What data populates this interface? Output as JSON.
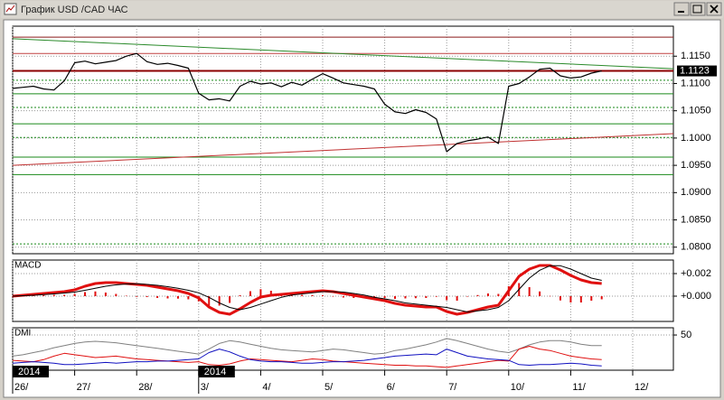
{
  "window": {
    "title": "График USD /CAD ЧАС"
  },
  "chart_data": [
    {
      "type": "line",
      "categories": [
        "26/",
        null,
        null,
        null,
        null,
        null,
        "27/",
        null,
        null,
        null,
        null,
        null,
        "28/",
        null,
        null,
        null,
        null,
        null,
        "3/",
        null,
        null,
        null,
        null,
        null,
        "4/",
        null,
        null,
        null,
        null,
        null,
        "5/",
        null,
        null,
        null,
        null,
        null,
        "6/",
        null,
        null,
        null,
        null,
        null,
        "7/",
        null,
        null,
        null,
        null,
        null,
        "10/",
        null,
        null,
        null,
        null,
        null,
        "11/",
        null,
        null,
        null,
        null,
        null,
        "12/"
      ],
      "series": [
        {
          "color": "#000000",
          "values": [
            1.1091,
            1.1093,
            1.1095,
            1.109,
            1.1088,
            1.1105,
            1.1138,
            1.1141,
            1.1136,
            1.1139,
            1.1142,
            1.115,
            1.1155,
            1.114,
            1.1135,
            1.1137,
            1.1133,
            1.1128,
            1.1082,
            1.107,
            1.1072,
            1.1068,
            1.1095,
            1.1104,
            1.1099,
            1.1101,
            1.1094,
            1.1102,
            1.1097,
            1.1108,
            1.1118,
            1.111,
            1.1101,
            1.1098,
            1.1095,
            1.109,
            1.1062,
            1.1048,
            1.1045,
            1.1052,
            1.1047,
            1.1035,
            1.0975,
            1.099,
            1.0995,
            1.0998,
            1.1002,
            1.099,
            1.1095,
            1.11,
            1.1112,
            1.1126,
            1.1128,
            1.1114,
            1.111,
            1.1112,
            1.1119,
            1.1123,
            null,
            null,
            null
          ]
        }
      ],
      "ylim": [
        1.0788,
        1.1205
      ],
      "yticks": [
        {
          "value": 1.115,
          "label": "1.1150"
        },
        {
          "value": 1.11,
          "label": "1.1100"
        },
        {
          "value": 1.105,
          "label": "1.1050"
        },
        {
          "value": 1.1,
          "label": "1.1000"
        },
        {
          "value": 1.095,
          "label": "1.0950"
        },
        {
          "value": 1.09,
          "label": "1.0900"
        },
        {
          "value": 1.085,
          "label": "1.0850"
        },
        {
          "value": 1.08,
          "label": "1.0800"
        }
      ],
      "grid": true,
      "last_price": 1.1123,
      "last_price_color": "#8b0000",
      "levels": [
        {
          "value": 1.1185,
          "color": "#8b1a1a",
          "dashed": false
        },
        {
          "value": 1.1155,
          "color": "#c04040",
          "dashed": false
        },
        {
          "value": 1.1106,
          "color": "#1a8a1a",
          "dashed": true
        },
        {
          "value": 1.1081,
          "color": "#1a8a1a",
          "dashed": false
        },
        {
          "value": 1.1056,
          "color": "#1a8a1a",
          "dashed": true
        },
        {
          "value": 1.1026,
          "color": "#1a8a1a",
          "dashed": false
        },
        {
          "value": 1.1001,
          "color": "#1a8a1a",
          "dashed": true
        },
        {
          "value": 1.0965,
          "color": "#1a8a1a",
          "dashed": false
        },
        {
          "value": 1.0933,
          "color": "#1a8a1a",
          "dashed": false
        },
        {
          "value": 1.0806,
          "color": "#1a8a1a",
          "dashed": true
        }
      ],
      "trend_lines": [
        {
          "color": "#2a8a2a",
          "values": [
            1.1182,
            1.1127
          ]
        },
        {
          "color": "#c03030",
          "values": [
            1.095,
            1.1008
          ]
        }
      ],
      "annotations": [
        {
          "label": "2014",
          "category": 0
        },
        {
          "label": "2014",
          "category": 18
        }
      ]
    },
    {
      "type": "line",
      "title": "MACD",
      "series": [
        {
          "color": "#e01010",
          "width": 3,
          "values": [
            0,
            8e-05,
            0.00016,
            0.00024,
            0.00032,
            0.0004,
            0.00056,
            0.00088,
            0.00112,
            0.0012,
            0.0012,
            0.00112,
            0.00104,
            0.00096,
            0.0008,
            0.00064,
            0.00048,
            0.00024,
            -0.00016,
            -0.00096,
            -0.00144,
            -0.0016,
            -0.00112,
            -0.00056,
            -8e-05,
            8e-05,
            0.00016,
            0.00024,
            0.00032,
            0.0004,
            0.00048,
            0.0004,
            0.00024,
            8e-05,
            -8e-05,
            -0.00024,
            -0.0004,
            -0.00064,
            -0.0008,
            -0.00088,
            -0.00096,
            -0.00096,
            -0.00136,
            -0.0016,
            -0.00144,
            -0.0012,
            -0.00096,
            -0.0008,
            0.00048,
            0.00176,
            0.0024,
            0.00272,
            0.00272,
            0.00232,
            0.00184,
            0.00144,
            0.0012,
            0.00112
          ]
        },
        {
          "color": "#000000",
          "width": 1,
          "values": [
            0,
            4e-05,
            8e-05,
            0.00014,
            0.0002,
            0.00028,
            0.00036,
            0.00052,
            0.0007,
            0.00088,
            0.001,
            0.00108,
            0.0011,
            0.00104,
            0.00096,
            0.00084,
            0.0007,
            0.00052,
            0.0003,
            -0.0001,
            -0.0006,
            -0.001,
            -0.0012,
            -0.001,
            -0.0007,
            -0.0004,
            -0.0001,
            0.0001,
            0.0002,
            0.0003,
            0.0004,
            0.0004,
            0.00036,
            0.00024,
            0.0001,
            -0.0001,
            -0.00024,
            -0.0004,
            -0.0006,
            -0.0007,
            -0.0008,
            -0.0009,
            -0.001,
            -0.0012,
            -0.0014,
            -0.0013,
            -0.0012,
            -0.001,
            -0.0004,
            0.0006,
            0.0016,
            0.0023,
            0.0027,
            0.0027,
            0.0024,
            0.002,
            0.0016,
            0.0014
          ]
        }
      ],
      "histogram": {
        "color": "#e01010",
        "values": [
          0,
          4e-05,
          8e-05,
          0.0001,
          0.00012,
          0.00012,
          0.0002,
          0.00036,
          0.00042,
          0.00032,
          0.0002,
          4e-05,
          -6e-05,
          -8e-05,
          -0.00016,
          -0.0002,
          -0.00022,
          -0.00028,
          -0.00046,
          -0.00086,
          -0.00084,
          -0.0006,
          8e-05,
          0.00044,
          0.00062,
          0.00048,
          0.00026,
          0.00014,
          0.00012,
          0.0001,
          8e-05,
          0,
          -0.00012,
          -0.00016,
          -0.00018,
          -0.00014,
          -0.00016,
          -0.00024,
          -0.0002,
          -0.00018,
          -0.00016,
          -6e-05,
          -0.00036,
          -0.0004,
          -4e-05,
          0.0001,
          0.00024,
          0.0002,
          0.00088,
          0.00116,
          0.0008,
          0.00042,
          2e-05,
          -0.00038,
          -0.00056,
          -0.00056,
          -0.0004,
          -0.00028
        ]
      },
      "ylim": [
        -0.00224,
        0.0032
      ],
      "yticks": [
        {
          "value": 0.002,
          "label": "+0.002"
        },
        {
          "value": 0,
          "label": "+0.000"
        }
      ],
      "grid": true
    },
    {
      "type": "line",
      "title": "DMI",
      "series": [
        {
          "color": "#808080",
          "width": 1,
          "values": [
            20,
            22,
            25,
            28,
            32,
            35,
            38,
            40,
            41,
            40,
            39,
            37,
            35,
            33,
            31,
            29,
            27,
            25,
            23,
            30,
            38,
            42,
            40,
            37,
            34,
            31,
            29,
            28,
            27,
            26,
            28,
            30,
            29,
            27,
            25,
            23,
            24,
            28,
            30,
            33,
            36,
            40,
            45,
            42,
            38,
            34,
            30,
            27,
            25,
            30,
            36,
            40,
            42,
            42,
            40,
            37,
            35,
            35
          ]
        },
        {
          "color": "#e01010",
          "width": 1,
          "values": [
            14,
            13,
            12,
            15,
            20,
            24,
            22,
            20,
            18,
            19,
            20,
            18,
            16,
            15,
            14,
            13,
            12,
            11,
            12,
            8,
            7,
            9,
            13,
            16,
            15,
            14,
            13,
            12,
            14,
            16,
            15,
            13,
            12,
            11,
            10,
            9,
            8,
            7,
            7,
            6,
            6,
            5,
            4,
            6,
            8,
            10,
            12,
            14,
            13,
            30,
            34,
            30,
            28,
            24,
            20,
            18,
            16,
            15
          ]
        },
        {
          "color": "#1010c0",
          "width": 1,
          "values": [
            10,
            11,
            12,
            11,
            10,
            8,
            8,
            9,
            10,
            11,
            10,
            11,
            12,
            12,
            13,
            13,
            14,
            15,
            16,
            25,
            30,
            26,
            20,
            15,
            13,
            12,
            12,
            11,
            10,
            10,
            11,
            12,
            12,
            13,
            14,
            16,
            18,
            20,
            21,
            22,
            23,
            22,
            30,
            25,
            20,
            18,
            16,
            15,
            14,
            8,
            7,
            8,
            8,
            9,
            10,
            9,
            7,
            6
          ]
        }
      ],
      "ylim": [
        0,
        60.3
      ],
      "yticks": [
        50
      ],
      "grid": true
    }
  ]
}
